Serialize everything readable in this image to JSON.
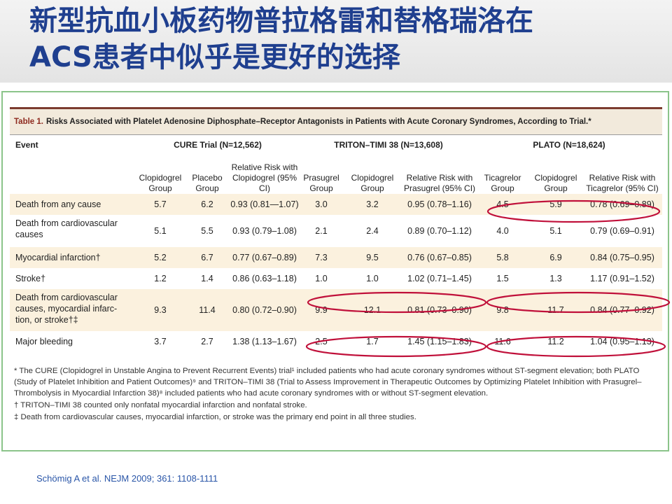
{
  "slide": {
    "title_line1": "新型抗血小板药物普拉格雷和替格瑞洛在",
    "title_line2": "ACS患者中似乎是更好的选择",
    "citation": "Schömig A et al. NEJM 2009; 361: 1108-1111",
    "highlight_color": "#c0103a"
  },
  "table": {
    "label": "Table 1.",
    "caption": "Risks Associated with Platelet Adenosine Diphosphate–Receptor Antagonists in Patients with Acute Coronary Syndromes, According to Trial.*",
    "event_header": "Event",
    "trials": [
      "CURE Trial (N=12,562)",
      "TRITON–TIMI 38 (N=13,608)",
      "PLATO (N=18,624)"
    ],
    "columns": [
      "Clopidogrel Group",
      "Placebo Group",
      "Relative Risk with Clopidogrel (95% CI)",
      "Prasugrel Group",
      "Clopidogrel Group",
      "Relative Risk with Prasugrel (95% CI)",
      "Ticagrelor Group",
      "Clopidogrel Group",
      "Relative Risk with Ticagrelor (95% CI)"
    ],
    "rows": [
      {
        "event": "Death from any cause",
        "values": [
          "5.7",
          "6.2",
          "0.93 (0.81—1.07)",
          "3.0",
          "3.2",
          "0.95 (0.78–1.16)",
          "4.5",
          "5.9",
          "0.78 (0.69–0.89)"
        ]
      },
      {
        "event": "Death from cardiovascular causes",
        "values": [
          "5.1",
          "5.5",
          "0.93 (0.79–1.08)",
          "2.1",
          "2.4",
          "0.89 (0.70–1.12)",
          "4.0",
          "5.1",
          "0.79 (0.69–0.91)"
        ]
      },
      {
        "event": "Myocardial infarction†",
        "values": [
          "5.2",
          "6.7",
          "0.77 (0.67–0.89)",
          "7.3",
          "9.5",
          "0.76 (0.67–0.85)",
          "5.8",
          "6.9",
          "0.84 (0.75–0.95)"
        ]
      },
      {
        "event": "Stroke†",
        "values": [
          "1.2",
          "1.4",
          "0.86 (0.63–1.18)",
          "1.0",
          "1.0",
          "1.02 (0.71–1.45)",
          "1.5",
          "1.3",
          "1.17 (0.91–1.52)"
        ]
      },
      {
        "event": "Death from cardiovascular causes, myocardial infarc- tion, or stroke†‡",
        "values": [
          "9.3",
          "11.4",
          "0.80 (0.72–0.90)",
          "9.9",
          "12.1",
          "0.81 (0.73–0.90)",
          "9.8",
          "11.7",
          "0.84 (0.77–0.92)"
        ]
      },
      {
        "event": "Major bleeding",
        "values": [
          "3.7",
          "2.7",
          "1.38 (1.13–1.67)",
          "2.5",
          "1.7",
          "1.45 (1.15–1.83)",
          "11.6",
          "11.2",
          "1.04 (0.95–1.13)"
        ]
      }
    ],
    "footnotes": [
      "* The CURE (Clopidogrel in Unstable Angina to Prevent Recurrent Events) trial¹ included patients who had acute coronary syndromes without ST-segment elevation; both PLATO (Study of Platelet Inhibition and Patient Outcomes)⁹ and TRITON–TIMI 38 (Trial to Assess Improvement in Therapeutic Outcomes by Optimizing Platelet Inhibition with Prasugrel–Thrombolysis in Myocardial Infarction 38)⁸ included patients who had acute coronary syndromes with or without ST-segment elevation.",
      "† TRITON–TIMI 38 counted only nonfatal myocardial infarction and nonfatal stroke.",
      "‡ Death from cardiovascular causes, myocardial infarction, or stroke was the primary end point in all three studies."
    ]
  }
}
